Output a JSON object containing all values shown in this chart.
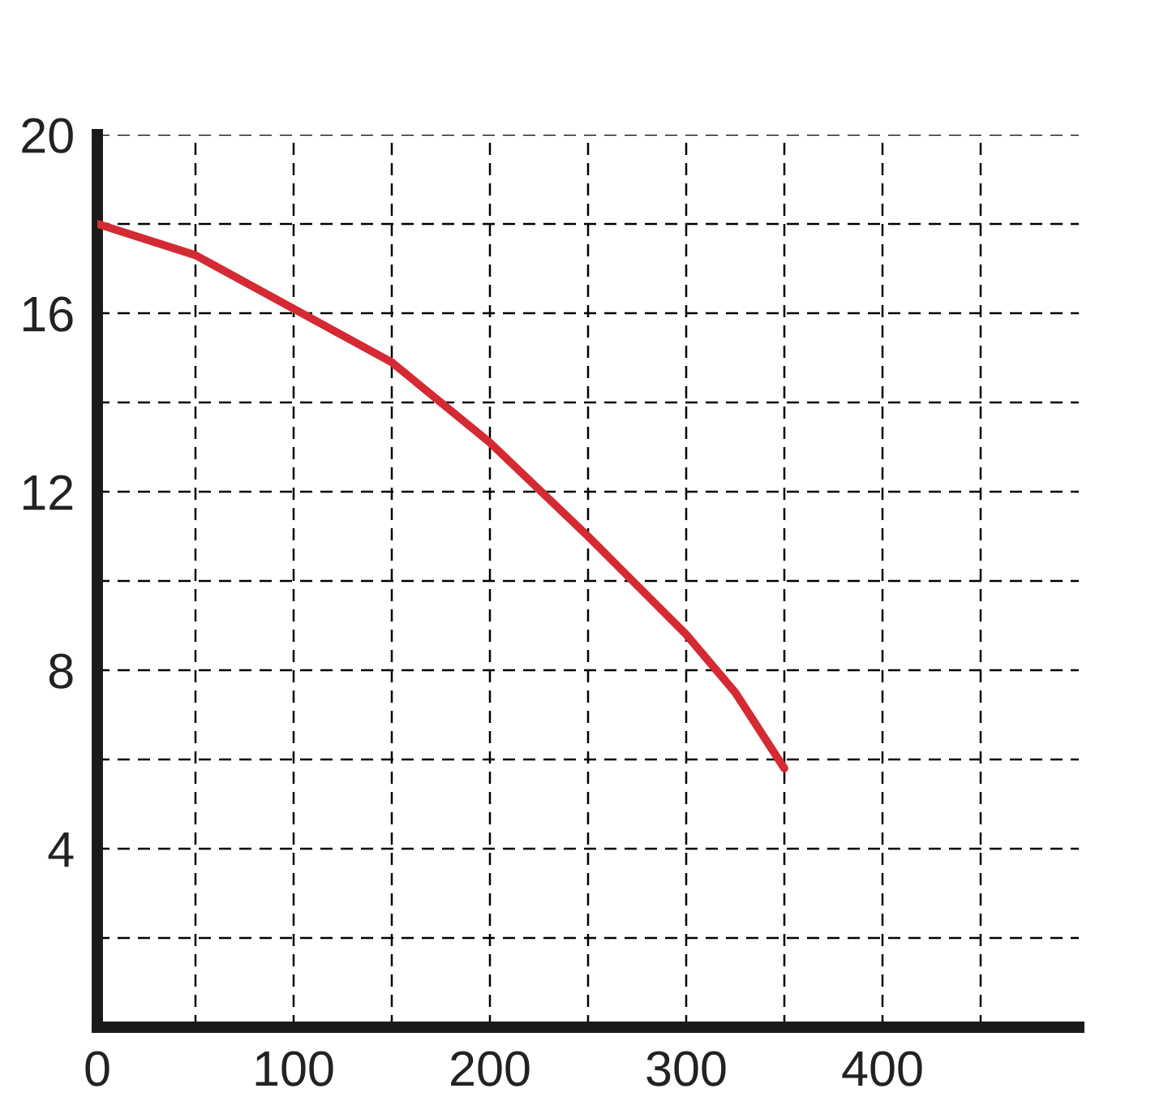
{
  "chart_data": {
    "type": "line",
    "x": [
      0,
      50,
      100,
      150,
      200,
      250,
      300,
      325,
      350
    ],
    "series": [
      {
        "color": "#d42a33",
        "values": [
          18.0,
          17.3,
          16.1,
          14.9,
          13.1,
          11.0,
          8.8,
          7.5,
          5.8
        ]
      }
    ],
    "xlim": [
      0,
      500
    ],
    "ylim": [
      0,
      20
    ],
    "xticks": [
      {
        "value": 0,
        "label": "0"
      },
      {
        "value": 50,
        "label": null
      },
      100,
      {
        "value": 150,
        "label": null
      },
      200,
      {
        "value": 250,
        "label": null
      },
      300,
      {
        "value": 350,
        "label": null
      },
      400,
      {
        "value": 450,
        "label": null
      }
    ],
    "yticks": [
      {
        "value": 2,
        "label": null
      },
      4,
      {
        "value": 6,
        "label": null
      },
      8,
      {
        "value": 10,
        "label": null
      },
      12,
      {
        "value": 14,
        "label": null
      },
      16,
      {
        "value": 18,
        "label": null
      },
      20
    ],
    "grid": true,
    "line_style": "solid",
    "marker": "none"
  }
}
